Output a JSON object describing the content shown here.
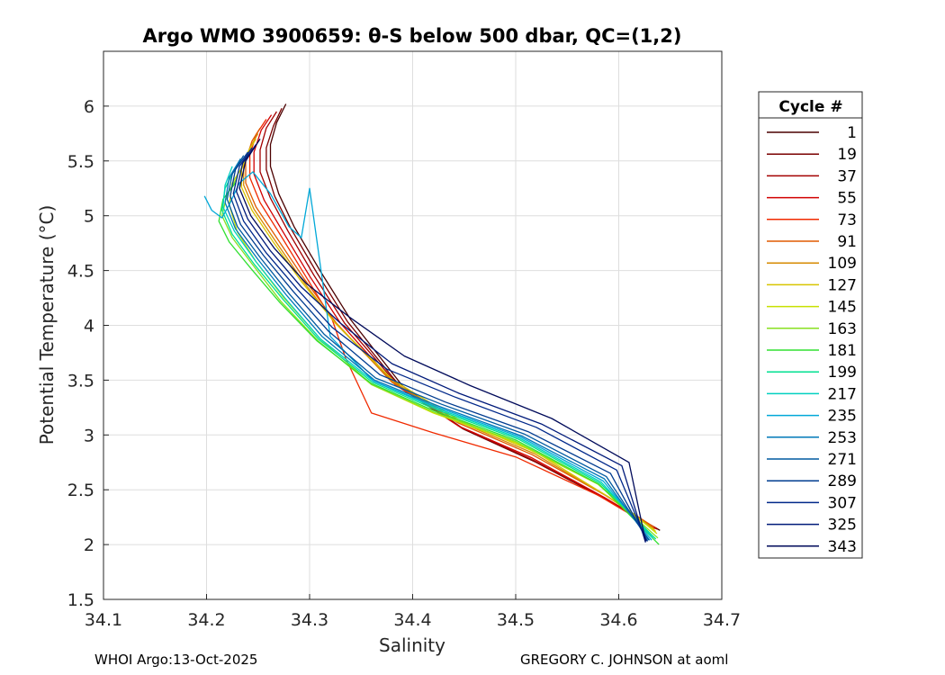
{
  "chart_data": {
    "type": "line",
    "title": "Argo WMO 3900659: θ-S below 500 dbar,  QC=(1,2)",
    "xlabel": "Salinity",
    "ylabel": "Potential Temperature (°C)",
    "xlim": [
      34.1,
      34.7
    ],
    "ylim": [
      1.5,
      6.5
    ],
    "xticks": [
      34.1,
      34.2,
      34.3,
      34.4,
      34.5,
      34.6,
      34.7
    ],
    "yticks": [
      1.5,
      2,
      2.5,
      3,
      3.5,
      4,
      4.5,
      5,
      5.5,
      6
    ],
    "xtick_labels": [
      "34.1",
      "34.2",
      "34.3",
      "34.4",
      "34.5",
      "34.6",
      "34.7"
    ],
    "ytick_labels": [
      "1.5",
      "2",
      "2.5",
      "3",
      "3.5",
      "4",
      "4.5",
      "5",
      "5.5",
      "6"
    ],
    "grid": true,
    "legend": {
      "title": "Cycle #",
      "placement": "right-outside",
      "entries": [
        {
          "label": "1",
          "color": "#4a0000"
        },
        {
          "label": "19",
          "color": "#7a0000"
        },
        {
          "label": "37",
          "color": "#a30000"
        },
        {
          "label": "55",
          "color": "#d10000"
        },
        {
          "label": "73",
          "color": "#f02a00"
        },
        {
          "label": "91",
          "color": "#e05a00"
        },
        {
          "label": "109",
          "color": "#d68a00"
        },
        {
          "label": "127",
          "color": "#d8c400"
        },
        {
          "label": "145",
          "color": "#c8e000"
        },
        {
          "label": "163",
          "color": "#88e020"
        },
        {
          "label": "181",
          "color": "#30e030"
        },
        {
          "label": "199",
          "color": "#00e090"
        },
        {
          "label": "217",
          "color": "#00d0c0"
        },
        {
          "label": "235",
          "color": "#00a8d8"
        },
        {
          "label": "253",
          "color": "#0078b8"
        },
        {
          "label": "271",
          "color": "#005aa0"
        },
        {
          "label": "289",
          "color": "#003c90"
        },
        {
          "label": "307",
          "color": "#00288a"
        },
        {
          "label": "325",
          "color": "#001a7a"
        },
        {
          "label": "343",
          "color": "#000a5a"
        }
      ]
    },
    "series": [
      {
        "name": "1",
        "color": "#4a0000",
        "x": [
          34.277,
          34.268,
          34.262,
          34.262,
          34.27,
          34.285,
          34.31,
          34.34,
          34.39,
          34.45,
          34.52,
          34.59,
          34.64
        ],
        "y": [
          6.02,
          5.85,
          5.65,
          5.45,
          5.2,
          4.9,
          4.5,
          4.05,
          3.45,
          3.05,
          2.75,
          2.4,
          2.13
        ]
      },
      {
        "name": "19",
        "color": "#7a0000",
        "x": [
          34.273,
          34.265,
          34.258,
          34.258,
          34.266,
          34.282,
          34.307,
          34.337,
          34.388,
          34.448,
          34.518,
          34.588,
          34.638
        ],
        "y": [
          5.98,
          5.82,
          5.62,
          5.42,
          5.18,
          4.88,
          4.48,
          4.03,
          3.44,
          3.06,
          2.76,
          2.41,
          2.14
        ]
      },
      {
        "name": "37",
        "color": "#a30000",
        "x": [
          34.268,
          34.258,
          34.252,
          34.252,
          34.262,
          34.279,
          34.304,
          34.334,
          34.386,
          34.447,
          34.517,
          34.587,
          34.637
        ],
        "y": [
          5.95,
          5.8,
          5.6,
          5.4,
          5.16,
          4.86,
          4.46,
          4.02,
          3.45,
          3.07,
          2.77,
          2.42,
          2.14
        ]
      },
      {
        "name": "55",
        "color": "#d10000",
        "x": [
          34.263,
          34.253,
          34.246,
          34.246,
          34.256,
          34.275,
          34.3,
          34.33,
          34.383,
          34.445,
          34.516,
          34.586,
          34.636
        ],
        "y": [
          5.92,
          5.78,
          5.58,
          5.38,
          5.14,
          4.84,
          4.45,
          4.02,
          3.46,
          3.08,
          2.79,
          2.43,
          2.15
        ]
      },
      {
        "name": "73",
        "color": "#f02a00",
        "x": [
          34.258,
          34.248,
          34.242,
          34.242,
          34.252,
          34.272,
          34.298,
          34.322,
          34.335,
          34.36,
          34.42,
          34.5,
          34.58,
          34.632
        ],
        "y": [
          5.88,
          5.74,
          5.55,
          5.35,
          5.12,
          4.82,
          4.42,
          4.05,
          3.7,
          3.2,
          3.02,
          2.8,
          2.45,
          2.16
        ]
      },
      {
        "name": "91",
        "color": "#e05a00",
        "x": [
          34.252,
          34.244,
          34.238,
          34.238,
          34.248,
          34.268,
          34.295,
          34.326,
          34.38,
          34.444,
          34.516,
          34.587,
          34.634
        ],
        "y": [
          5.8,
          5.68,
          5.5,
          5.3,
          5.08,
          4.8,
          4.42,
          4.02,
          3.48,
          3.11,
          2.82,
          2.45,
          2.16
        ]
      },
      {
        "name": "109",
        "color": "#d68a00",
        "x": [
          34.25,
          34.242,
          34.236,
          34.236,
          34.246,
          34.266,
          34.293,
          34.325,
          34.38,
          34.445,
          34.518,
          34.589,
          34.635
        ],
        "y": [
          5.75,
          5.62,
          5.45,
          5.28,
          5.06,
          4.78,
          4.41,
          4.02,
          3.49,
          3.12,
          2.83,
          2.44,
          2.14
        ]
      },
      {
        "name": "127",
        "color": "#d8c400",
        "x": [
          34.248,
          34.24,
          34.234,
          34.234,
          34.244,
          34.264,
          34.292,
          34.325,
          34.381,
          34.446,
          34.52,
          34.591,
          34.636
        ],
        "y": [
          5.7,
          5.58,
          5.42,
          5.26,
          5.05,
          4.77,
          4.4,
          4.02,
          3.5,
          3.13,
          2.84,
          2.43,
          2.12
        ]
      },
      {
        "name": "145",
        "color": "#c8e000",
        "x": [
          34.235,
          34.225,
          34.222,
          34.23,
          34.248,
          34.275,
          34.31,
          34.36,
          34.42,
          34.5,
          34.58,
          34.637
        ],
        "y": [
          5.45,
          5.3,
          5.1,
          4.85,
          4.58,
          4.25,
          3.88,
          3.46,
          3.2,
          2.93,
          2.55,
          2.1
        ]
      },
      {
        "name": "163",
        "color": "#88e020",
        "x": [
          34.23,
          34.22,
          34.215,
          34.225,
          34.245,
          34.272,
          34.308,
          34.36,
          34.42,
          34.5,
          34.58,
          34.638
        ],
        "y": [
          5.35,
          5.2,
          5.0,
          4.8,
          4.55,
          4.22,
          3.86,
          3.46,
          3.21,
          2.94,
          2.55,
          2.06
        ]
      },
      {
        "name": "181",
        "color": "#30e030",
        "x": [
          34.228,
          34.216,
          34.212,
          34.222,
          34.243,
          34.271,
          34.307,
          34.36,
          34.421,
          34.501,
          34.581,
          34.639
        ],
        "y": [
          5.3,
          5.15,
          4.95,
          4.76,
          4.52,
          4.21,
          3.86,
          3.47,
          3.22,
          2.95,
          2.55,
          2.0
        ]
      },
      {
        "name": "199",
        "color": "#00e090",
        "x": [
          34.226,
          34.218,
          34.215,
          34.225,
          34.246,
          34.274,
          34.309,
          34.361,
          34.423,
          34.503,
          34.582,
          34.636
        ],
        "y": [
          5.4,
          5.25,
          5.05,
          4.83,
          4.56,
          4.24,
          3.87,
          3.48,
          3.23,
          2.96,
          2.56,
          2.05
        ]
      },
      {
        "name": "217",
        "color": "#00d0c0",
        "x": [
          34.225,
          34.218,
          34.216,
          34.227,
          34.248,
          34.276,
          34.31,
          34.362,
          34.424,
          34.504,
          34.583,
          34.633
        ],
        "y": [
          5.45,
          5.28,
          5.08,
          4.86,
          4.58,
          4.25,
          3.88,
          3.49,
          3.24,
          2.97,
          2.57,
          2.06
        ]
      },
      {
        "name": "235",
        "color": "#00a8d8",
        "x": [
          34.198,
          34.205,
          34.215,
          34.222,
          34.232,
          34.245,
          34.262,
          34.28,
          34.292,
          34.3,
          34.32,
          34.362,
          34.425,
          34.505,
          34.585,
          34.632
        ],
        "y": [
          5.18,
          5.05,
          4.98,
          5.1,
          5.3,
          5.4,
          5.2,
          4.9,
          4.8,
          5.25,
          3.9,
          3.49,
          3.25,
          2.98,
          2.58,
          2.04
        ]
      },
      {
        "name": "253",
        "color": "#0078b8",
        "x": [
          34.233,
          34.222,
          34.218,
          34.228,
          34.25,
          34.278,
          34.312,
          34.363,
          34.426,
          34.506,
          34.586,
          34.63
        ],
        "y": [
          5.52,
          5.35,
          5.12,
          4.88,
          4.6,
          4.27,
          3.9,
          3.5,
          3.26,
          2.99,
          2.6,
          2.04
        ]
      },
      {
        "name": "271",
        "color": "#005aa0",
        "x": [
          34.236,
          34.225,
          34.22,
          34.23,
          34.252,
          34.28,
          34.314,
          34.364,
          34.428,
          34.508,
          34.588,
          34.629
        ],
        "y": [
          5.55,
          5.38,
          5.15,
          4.9,
          4.62,
          4.29,
          3.92,
          3.52,
          3.28,
          3.01,
          2.62,
          2.04
        ]
      },
      {
        "name": "289",
        "color": "#003c90",
        "x": [
          34.24,
          34.228,
          34.223,
          34.233,
          34.255,
          34.284,
          34.318,
          34.368,
          34.432,
          34.512,
          34.592,
          34.628
        ],
        "y": [
          5.58,
          5.42,
          5.18,
          4.92,
          4.64,
          4.31,
          3.95,
          3.55,
          3.3,
          3.03,
          2.65,
          2.03
        ]
      },
      {
        "name": "307",
        "color": "#00288a",
        "x": [
          34.244,
          34.232,
          34.226,
          34.236,
          34.258,
          34.288,
          34.322,
          34.375,
          34.44,
          34.52,
          34.598,
          34.627
        ],
        "y": [
          5.62,
          5.45,
          5.2,
          4.95,
          4.66,
          4.33,
          3.98,
          3.6,
          3.35,
          3.07,
          2.68,
          2.03
        ]
      },
      {
        "name": "325",
        "color": "#001a7a",
        "x": [
          34.248,
          34.235,
          34.229,
          34.24,
          34.262,
          34.292,
          34.33,
          34.38,
          34.445,
          34.525,
          34.603,
          34.626
        ],
        "y": [
          5.65,
          5.48,
          5.22,
          4.97,
          4.68,
          4.35,
          4.02,
          3.65,
          3.38,
          3.1,
          2.72,
          2.02
        ]
      },
      {
        "name": "343",
        "color": "#000a5a",
        "x": [
          34.252,
          34.238,
          34.232,
          34.243,
          34.266,
          34.297,
          34.338,
          34.392,
          34.456,
          34.535,
          34.61,
          34.626
        ],
        "y": [
          5.7,
          5.5,
          5.25,
          5.0,
          4.7,
          4.38,
          4.08,
          3.72,
          3.45,
          3.15,
          2.75,
          2.03
        ]
      }
    ]
  },
  "footer": {
    "left": "WHOI Argo:13-Oct-2025",
    "right": "GREGORY C. JOHNSON at aoml"
  }
}
